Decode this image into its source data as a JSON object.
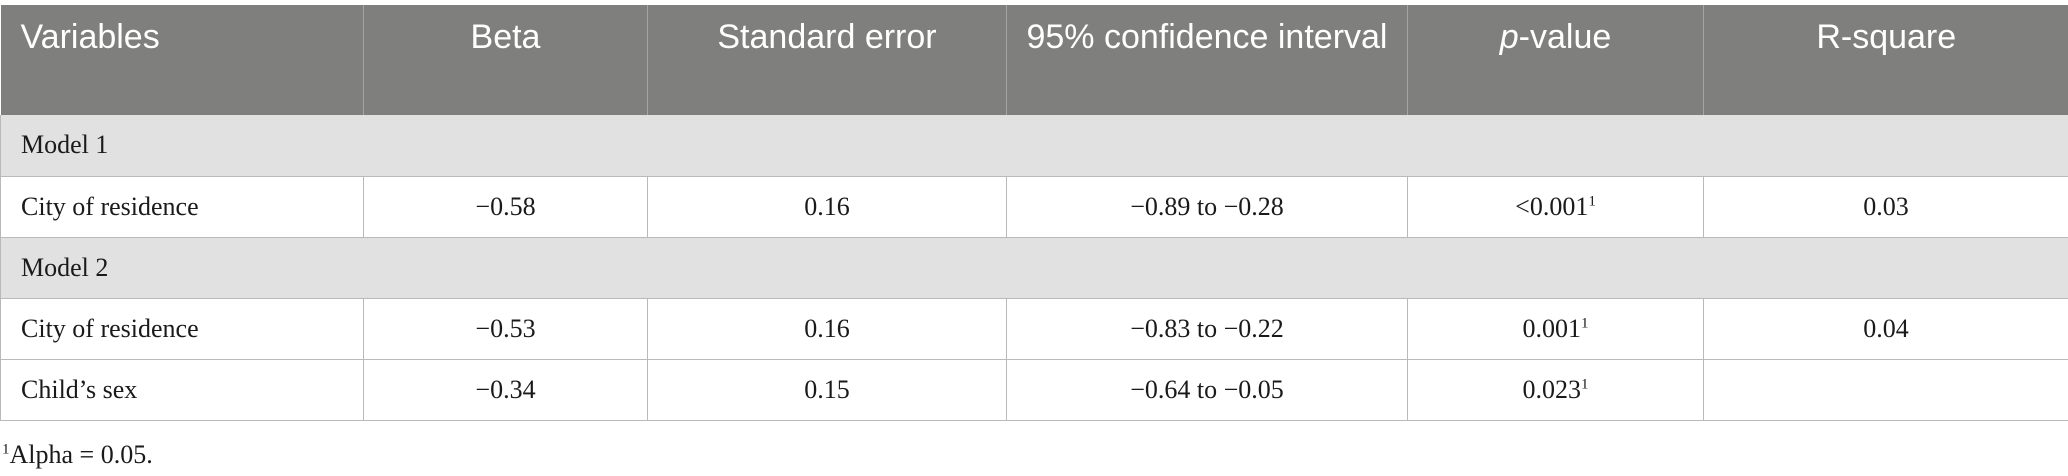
{
  "table": {
    "headers": {
      "variables": "Variables",
      "beta": "Beta",
      "standard_error": "Standard error",
      "ci": "95% confidence interval",
      "p_italic": "p",
      "p_rest": "-value",
      "r_square": "R-square"
    },
    "model1": {
      "label": "Model 1",
      "rows": [
        {
          "variable": "City of residence",
          "beta": "−0.58",
          "se": "0.16",
          "ci": "−0.89 to −0.28",
          "p": "<0.001",
          "p_sup": "1",
          "r2": "0.03"
        }
      ]
    },
    "model2": {
      "label": "Model 2",
      "rows": [
        {
          "variable": "City of residence",
          "beta": "−0.53",
          "se": "0.16",
          "ci": "−0.83 to −0.22",
          "p": "0.001",
          "p_sup": "1",
          "r2": "0.04"
        },
        {
          "variable": "Child’s sex",
          "beta": "−0.34",
          "se": "0.15",
          "ci": "−0.64 to −0.05",
          "p": "0.023",
          "p_sup": "1",
          "r2": ""
        }
      ]
    }
  },
  "footnote": {
    "marker": "1",
    "text": "Alpha = 0.05."
  }
}
